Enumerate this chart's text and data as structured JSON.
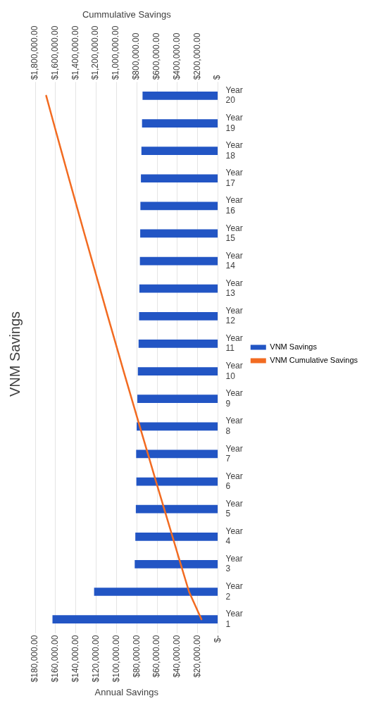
{
  "chart_data": {
    "type": "bar",
    "orientation": "horizontal",
    "title": "VNM Savings",
    "xlabel": "Annual Savings",
    "x2label": "Cummulative Savings",
    "categories": [
      "Year 20",
      "Year 19",
      "Year 18",
      "Year 17",
      "Year 16",
      "Year 15",
      "Year 14",
      "Year 13",
      "Year 12",
      "Year 11",
      "Year 10",
      "Year 9",
      "Year 8",
      "Year 7",
      "Year 6",
      "Year 5",
      "Year 4",
      "Year 3",
      "Year 2",
      "Year 1"
    ],
    "series": [
      {
        "name": "VNM Savings",
        "type": "bar",
        "color": "#2255c4",
        "values": [
          74300,
          74800,
          75400,
          75900,
          76400,
          76600,
          76900,
          77400,
          77700,
          78200,
          78900,
          79400,
          80100,
          80600,
          80400,
          80900,
          81400,
          82000,
          122000,
          163000
        ]
      },
      {
        "name": "VNM Cumulative Savings",
        "type": "line",
        "axis": "x2",
        "color": "#f26b21",
        "values": [
          1692000,
          1618000,
          1543000,
          1468000,
          1392000,
          1316000,
          1239000,
          1162000,
          1085000,
          1007000,
          929000,
          850000,
          770000,
          690000,
          610000,
          529000,
          448000,
          367000,
          285000,
          163000
        ]
      }
    ],
    "xlim": [
      180000,
      0
    ],
    "xticks": [
      {
        "value": 0,
        "label": "$-"
      },
      {
        "value": 20000,
        "label": "$20,000.00"
      },
      {
        "value": 40000,
        "label": "$40,000.00"
      },
      {
        "value": 60000,
        "label": "$60,000.00"
      },
      {
        "value": 80000,
        "label": "$80,000.00"
      },
      {
        "value": 100000,
        "label": "$100,000.00"
      },
      {
        "value": 120000,
        "label": "$120,000.00"
      },
      {
        "value": 140000,
        "label": "$140,000.00"
      },
      {
        "value": 160000,
        "label": "$160,000.00"
      },
      {
        "value": 180000,
        "label": "$180,000.00"
      }
    ],
    "x2lim": [
      1800000,
      0
    ],
    "x2ticks": [
      {
        "value": 0,
        "label": "$"
      },
      {
        "value": 200000,
        "label": "$200,000.00"
      },
      {
        "value": 400000,
        "label": "$400,000.00"
      },
      {
        "value": 600000,
        "label": "$600,000.00"
      },
      {
        "value": 800000,
        "label": "$800,000.00"
      },
      {
        "value": 1000000,
        "label": "$1,000,000.00"
      },
      {
        "value": 1200000,
        "label": "$1,200,000.00"
      },
      {
        "value": 1400000,
        "label": "$1,400,000.00"
      },
      {
        "value": 1600000,
        "label": "$1,600,000.00"
      },
      {
        "value": 1800000,
        "label": "$1,800,000.00"
      }
    ],
    "grid": "x",
    "legend": "right",
    "marker": "none",
    "line_style": "solid"
  }
}
